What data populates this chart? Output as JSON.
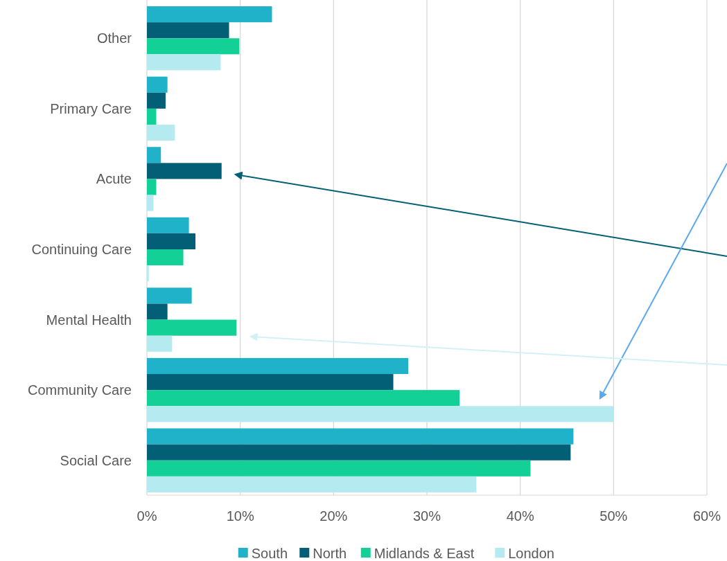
{
  "chart_data": {
    "type": "bar",
    "orientation": "horizontal",
    "categories": [
      "Other",
      "Primary Care",
      "Acute",
      "Continuing Care",
      "Mental Health",
      "Community Care",
      "Social Care"
    ],
    "series": [
      {
        "name": "South",
        "color": "#20b2c9",
        "values": [
          13.4,
          2.2,
          1.5,
          4.5,
          4.8,
          28.0,
          45.7
        ]
      },
      {
        "name": "North",
        "color": "#035f76",
        "values": [
          8.8,
          2.0,
          8.0,
          5.2,
          2.2,
          26.4,
          45.4
        ]
      },
      {
        "name": "Midlands & East",
        "color": "#12d096",
        "values": [
          9.9,
          1.0,
          1.0,
          3.9,
          9.6,
          33.5,
          41.1
        ]
      },
      {
        "name": "London",
        "color": "#b5eaf1",
        "values": [
          7.9,
          3.0,
          0.7,
          0.2,
          2.7,
          50.0,
          35.3
        ]
      }
    ],
    "xlim": [
      0,
      60
    ],
    "xticks": [
      {
        "value": 0,
        "label": "0%"
      },
      {
        "value": 10,
        "label": "10%"
      },
      {
        "value": 20,
        "label": "20%"
      },
      {
        "value": 30,
        "label": "30%"
      },
      {
        "value": 40,
        "label": "40%"
      },
      {
        "value": 50,
        "label": "50%"
      },
      {
        "value": 60,
        "label": "60%"
      }
    ],
    "grid": "x",
    "legend": "bottom"
  }
}
